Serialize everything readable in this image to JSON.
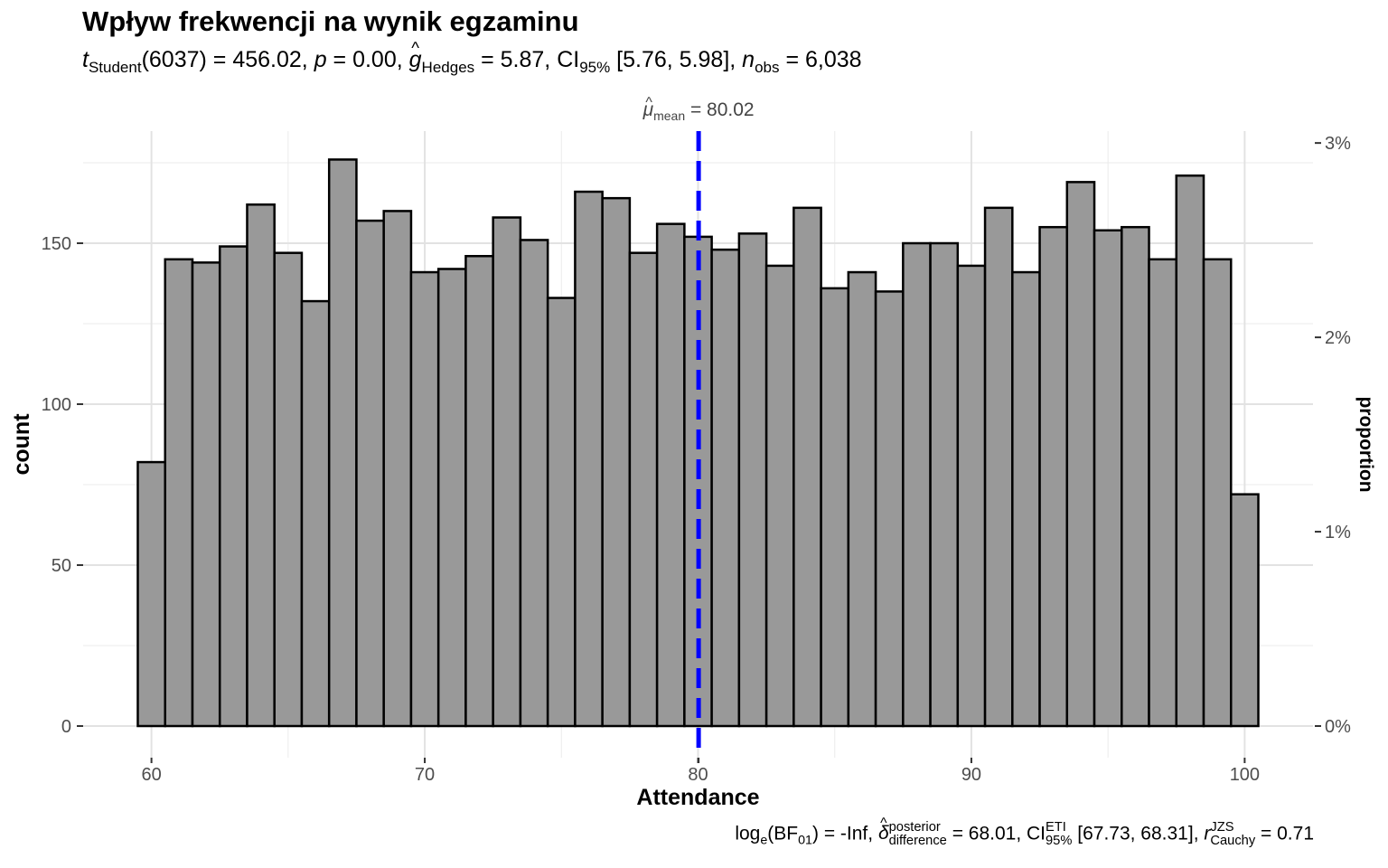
{
  "chart_data": {
    "type": "bar",
    "title": "Wpływ frekwencji na wynik egzaminu",
    "subtitle": {
      "t_label": "t",
      "t_sub": "Student",
      "t_value": "(6037) = 456.02, ",
      "p_label": "p",
      "p_value": " = 0.00, ",
      "g_label": "g",
      "g_hat": "^",
      "g_sub": "Hedges",
      "g_value": " = 5.87, CI",
      "ci_sub": "95%",
      "ci_value": " [5.76, 5.98], ",
      "n_label": "n",
      "n_sub": "obs",
      "n_value": " = 6,038"
    },
    "caption": {
      "log_label": "log",
      "log_sub": "e",
      "bf_text": "(BF",
      "bf_sub": "01",
      "bf_value": ") = -Inf, ",
      "delta_label": "δ",
      "delta_hat": "^",
      "delta_sup": "posterior",
      "delta_sub": "difference",
      "delta_value": " = 68.01, CI",
      "ci_sup": "ETI",
      "ci_sub": "95%",
      "ci_value": " [67.73, 68.31], ",
      "r_label": "r",
      "r_sup": "JZS",
      "r_sub": "Cauchy",
      "r_value": " = 0.71"
    },
    "xlabel": "Attendance",
    "ylabel": "count",
    "y2label": "proportion",
    "xlim": [
      57.5,
      102.5
    ],
    "ylim": [
      0,
      183
    ],
    "x_ticks": [
      60,
      70,
      80,
      90,
      100
    ],
    "y_ticks": [
      0,
      50,
      100,
      150
    ],
    "y2_ticks": [
      "0%",
      "1%",
      "2%",
      "3%"
    ],
    "y2_tick_fractions": [
      0,
      0.01,
      0.02,
      0.03
    ],
    "total_count": 6038,
    "bin_width": 1,
    "bin_centers": [
      60,
      61,
      62,
      63,
      64,
      65,
      66,
      67,
      68,
      69,
      70,
      71,
      72,
      73,
      74,
      75,
      76,
      77,
      78,
      79,
      80,
      81,
      82,
      83,
      84,
      85,
      86,
      87,
      88,
      89,
      90,
      91,
      92,
      93,
      94,
      95,
      96,
      97,
      98,
      99,
      100
    ],
    "values": [
      82,
      145,
      144,
      149,
      162,
      147,
      132,
      176,
      157,
      160,
      141,
      142,
      146,
      158,
      151,
      133,
      166,
      164,
      147,
      156,
      152,
      148,
      153,
      143,
      161,
      136,
      141,
      135,
      150,
      150,
      143,
      161,
      141,
      155,
      169,
      154,
      155,
      145,
      171,
      145,
      72
    ],
    "bar_color": "#999999",
    "bar_edge_color": "#000000",
    "mean_line_color": "#0000ff",
    "mean": 80.02,
    "mean_label_mu": "μ",
    "mean_label_hat": "^",
    "mean_label_sub": "mean",
    "mean_label_value": " = 80.02",
    "grid": true,
    "legend": "none"
  }
}
